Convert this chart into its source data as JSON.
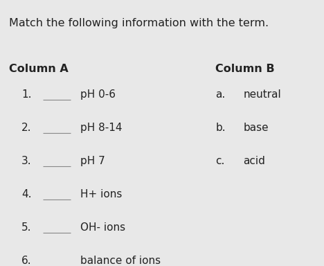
{
  "title": "Match the following information with the term.",
  "col_a_header": "Column A",
  "col_b_header": "Column B",
  "col_a_items": [
    {
      "num": "1.",
      "text": "pH 0-6"
    },
    {
      "num": "2.",
      "text": "pH 8-14"
    },
    {
      "num": "3.",
      "text": "pH 7"
    },
    {
      "num": "4.",
      "text": "H+ ions"
    },
    {
      "num": "5.",
      "text": "OH- ions"
    },
    {
      "num": "6.",
      "text": "balance of ions"
    }
  ],
  "col_b_items": [
    {
      "letter": "a.",
      "text": "neutral"
    },
    {
      "letter": "b.",
      "text": "base"
    },
    {
      "letter": "c.",
      "text": "acid"
    }
  ],
  "bg_color": "#e8e8e8",
  "text_color": "#222222",
  "title_fontsize": 11.5,
  "header_fontsize": 11.5,
  "item_fontsize": 11,
  "fig_width": 4.68,
  "fig_height": 3.84,
  "dpi": 100
}
